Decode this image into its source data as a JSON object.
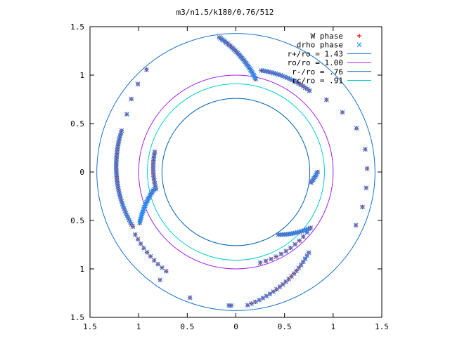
{
  "chart_data": {
    "type": "scatter",
    "title": "m3/n1.5/k180/0.76/512",
    "xlim": [
      -1.5,
      1.5
    ],
    "ylim": [
      -1.5,
      1.5
    ],
    "x_ticks": [
      -1.5,
      -1,
      -0.5,
      0,
      0.5,
      1,
      1.5
    ],
    "x_tick_labels": [
      "1.5",
      "1",
      "0.5",
      "0",
      "0.5",
      "1",
      "1.5"
    ],
    "y_ticks": [
      1.5,
      1,
      0.5,
      0,
      -0.5,
      -1,
      -1.5
    ],
    "y_tick_labels": [
      "1.5",
      "1",
      "0.5",
      "0",
      "0.5",
      "1",
      "1.5"
    ],
    "grid": false,
    "legend_position": "top-right",
    "circles": [
      {
        "name": "r+/ro = 1.43",
        "r": 1.43,
        "color": "#1874cd"
      },
      {
        "name": "ro/ro = 1.00",
        "r": 1.0,
        "color": "#a020f0"
      },
      {
        "name": "r-/ro = .76",
        "r": 0.76,
        "color": "#0060ad"
      },
      {
        "name": "rc/ro = .91",
        "r": 0.91,
        "color": "#00cdcd"
      }
    ],
    "series": [
      {
        "name": "W phase",
        "marker": "plus",
        "color": "#ff0000",
        "arms": [
          {
            "r0": 1.4,
            "th0": 97,
            "r1": 0.98,
            "th1": 78,
            "n": 35
          },
          {
            "r0": 1.4,
            "th0": 131,
            "r1": 1.27,
            "th1": 152,
            "n": 4
          },
          {
            "r0": 1.25,
            "th0": 160,
            "r1": 1.2,
            "th1": 208,
            "n": 40
          },
          {
            "r0": 1.22,
            "th0": 212,
            "r1": 1.25,
            "th1": 235,
            "n": 10
          },
          {
            "r0": 0.84,
            "th0": 0,
            "r1": 0.78,
            "th1": -8,
            "n": 8
          },
          {
            "r0": 0.86,
            "th0": 166,
            "r1": 0.84,
            "th1": 192,
            "n": 14
          },
          {
            "r0": 0.86,
            "th0": 192,
            "r1": 1.12,
            "th1": 208,
            "n": 22
          },
          {
            "r0": 1.08,
            "th0": 76,
            "r1": 1.13,
            "th1": 48,
            "n": 22
          },
          {
            "r0": 1.13,
            "th0": 48,
            "r1": 1.32,
            "th1": 20,
            "n": 4
          },
          {
            "r0": 1.35,
            "th0": 10,
            "r1": 1.35,
            "th1": -24,
            "n": 5
          },
          {
            "r0": 0.96,
            "th0": -37,
            "r1": 0.78,
            "th1": -56,
            "n": 16
          },
          {
            "r0": 0.96,
            "th0": -37,
            "r1": 0.97,
            "th1": -75,
            "n": 12
          },
          {
            "r0": 1.38,
            "th0": -85,
            "r1": 1.12,
            "th1": -48,
            "n": 22
          },
          {
            "r0": 1.38,
            "th0": -92,
            "r1": 1.38,
            "th1": -93,
            "n": 2
          },
          {
            "r0": 1.38,
            "th0": -110,
            "r1": 1.36,
            "th1": -125,
            "n": 2
          }
        ]
      },
      {
        "name": "drho phase",
        "marker": "cross",
        "color": "#1e90ff",
        "arms": [
          {
            "r0": 1.4,
            "th0": 97,
            "r1": 0.98,
            "th1": 78,
            "n": 35
          },
          {
            "r0": 1.4,
            "th0": 131,
            "r1": 1.27,
            "th1": 152,
            "n": 4
          },
          {
            "r0": 1.25,
            "th0": 160,
            "r1": 1.2,
            "th1": 208,
            "n": 40
          },
          {
            "r0": 1.22,
            "th0": 212,
            "r1": 1.25,
            "th1": 235,
            "n": 10
          },
          {
            "r0": 0.84,
            "th0": 0,
            "r1": 0.78,
            "th1": -8,
            "n": 8
          },
          {
            "r0": 0.86,
            "th0": 166,
            "r1": 0.84,
            "th1": 192,
            "n": 14
          },
          {
            "r0": 0.86,
            "th0": 192,
            "r1": 1.12,
            "th1": 208,
            "n": 22
          },
          {
            "r0": 1.08,
            "th0": 76,
            "r1": 1.13,
            "th1": 48,
            "n": 22
          },
          {
            "r0": 1.13,
            "th0": 48,
            "r1": 1.32,
            "th1": 20,
            "n": 4
          },
          {
            "r0": 1.35,
            "th0": 10,
            "r1": 1.35,
            "th1": -24,
            "n": 5
          },
          {
            "r0": 0.96,
            "th0": -37,
            "r1": 0.78,
            "th1": -56,
            "n": 16
          },
          {
            "r0": 0.96,
            "th0": -37,
            "r1": 0.97,
            "th1": -75,
            "n": 12
          },
          {
            "r0": 1.38,
            "th0": -85,
            "r1": 1.12,
            "th1": -48,
            "n": 22
          },
          {
            "r0": 1.38,
            "th0": -92,
            "r1": 1.38,
            "th1": -93,
            "n": 2
          },
          {
            "r0": 1.38,
            "th0": -110,
            "r1": 1.36,
            "th1": -125,
            "n": 2
          }
        ]
      }
    ]
  }
}
